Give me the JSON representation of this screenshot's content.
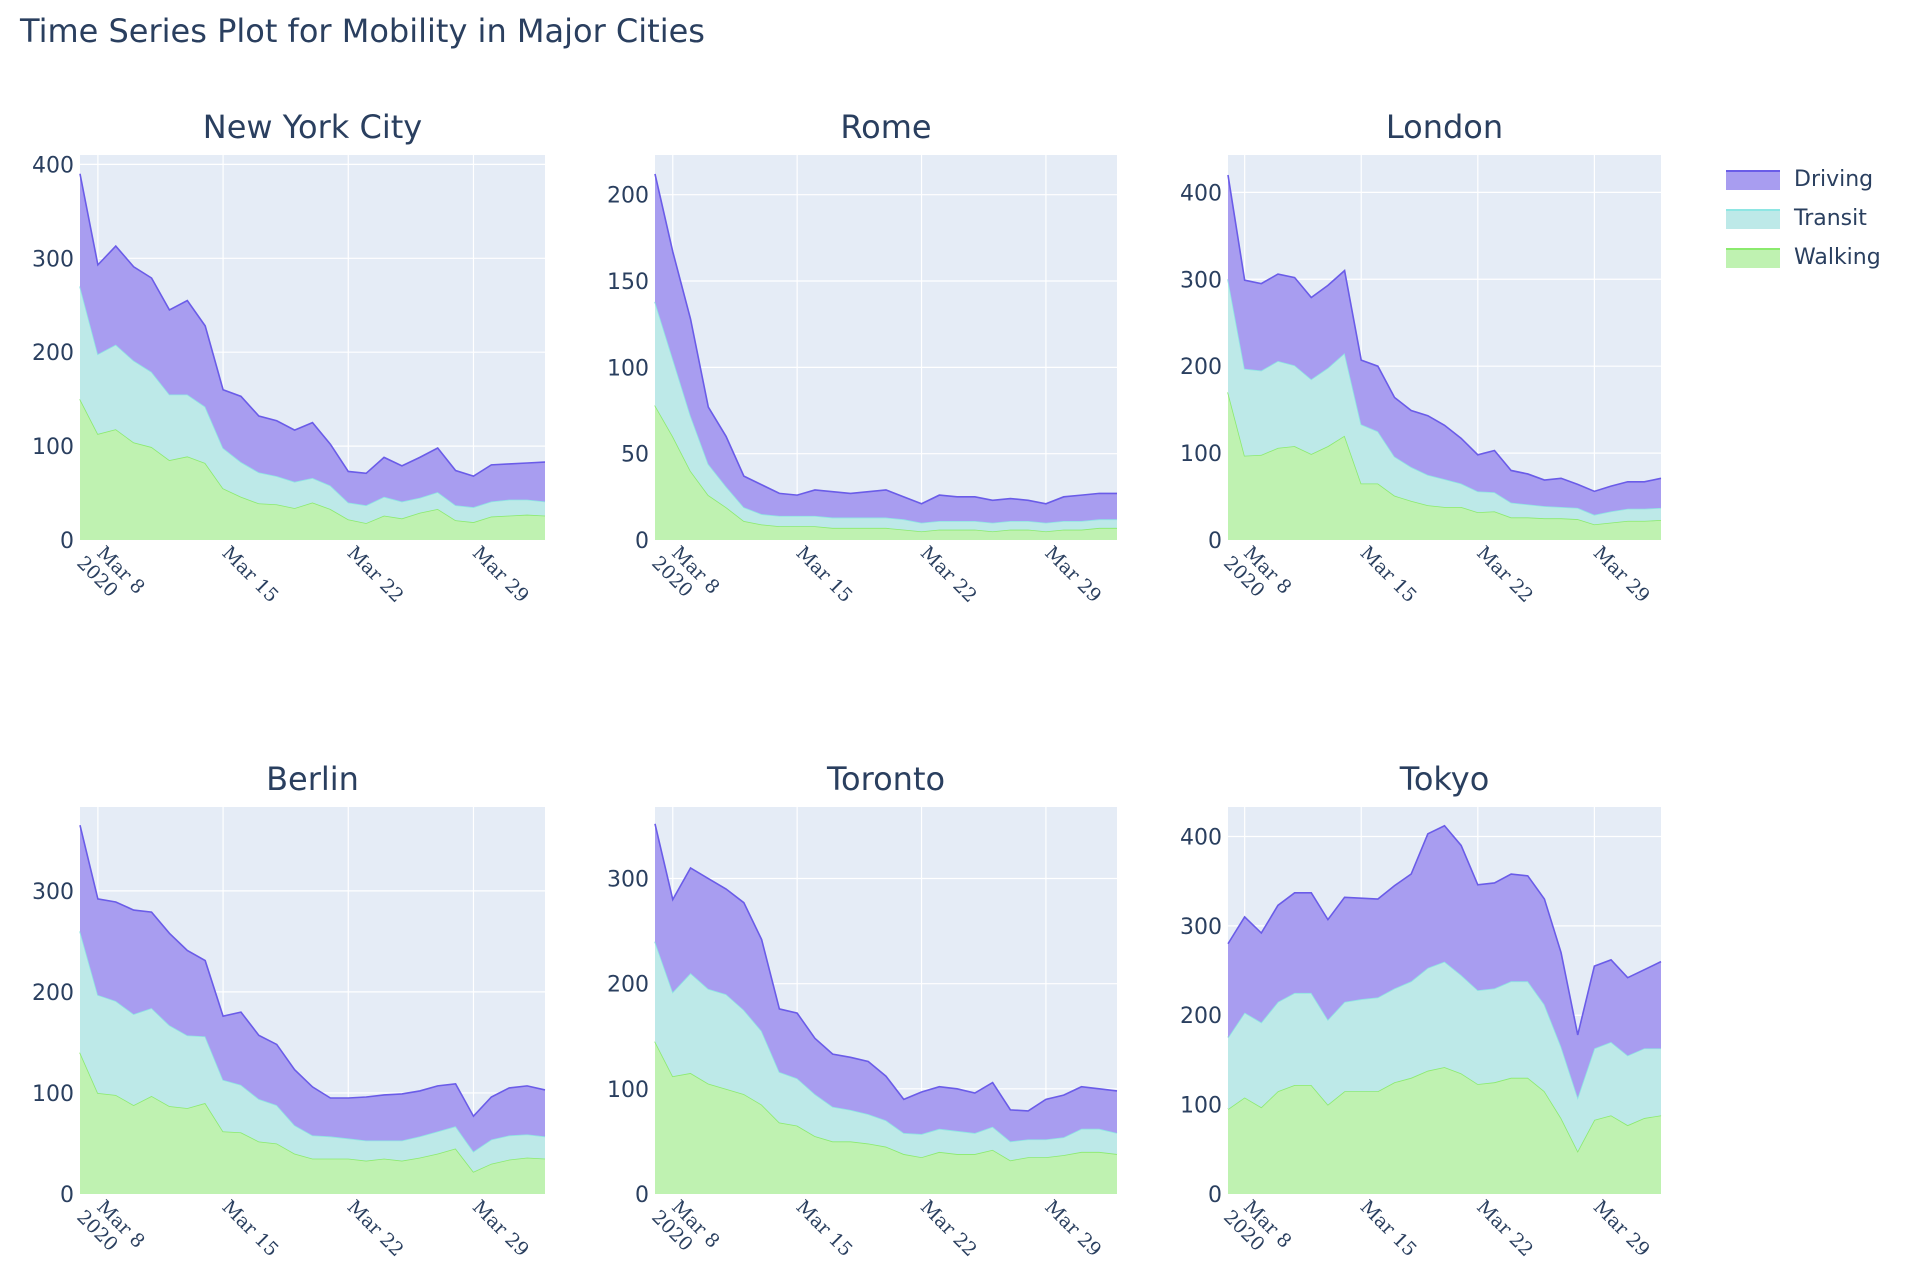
{
  "title": "Time Series Plot for Mobility in Major Cities",
  "colors": {
    "driving_fill": "#a89df0",
    "driving_line": "#6a5ce8",
    "transit_fill": "#bde9e8",
    "transit_line": "#8ee6e3",
    "walking_fill": "#bff2b1",
    "walking_line": "#8bea6e",
    "plot_bg": "#e5ecf6",
    "grid": "#ffffff",
    "text": "#2a3f5f"
  },
  "legend": [
    {
      "name": "Driving",
      "fill": "#a89df0",
      "line": "#6a5ce8"
    },
    {
      "name": "Transit",
      "fill": "#bde9e8",
      "line": "#8ee6e3"
    },
    {
      "name": "Walking",
      "fill": "#bff2b1",
      "line": "#8bea6e"
    }
  ],
  "x_ticks": [
    {
      "day": 8,
      "label": "Mar 8",
      "sub": "2020"
    },
    {
      "day": 15,
      "label": "Mar 15",
      "sub": ""
    },
    {
      "day": 22,
      "label": "Mar 22",
      "sub": ""
    },
    {
      "day": 29,
      "label": "Mar 29",
      "sub": ""
    }
  ],
  "chart_data": [
    {
      "type": "area",
      "stacked": true,
      "title": "New York City",
      "x": [
        "2020-03-07",
        "2020-03-08",
        "2020-03-09",
        "2020-03-10",
        "2020-03-11",
        "2020-03-12",
        "2020-03-13",
        "2020-03-14",
        "2020-03-15",
        "2020-03-16",
        "2020-03-17",
        "2020-03-18",
        "2020-03-19",
        "2020-03-20",
        "2020-03-21",
        "2020-03-22",
        "2020-03-23",
        "2020-03-24",
        "2020-03-25",
        "2020-03-26",
        "2020-03-27",
        "2020-03-28",
        "2020-03-29",
        "2020-03-30",
        "2020-03-31",
        "2020-04-01",
        "2020-04-02"
      ],
      "ylim": [
        0,
        410
      ],
      "yticks": [
        0,
        100,
        200,
        300,
        400
      ],
      "series": [
        {
          "name": "Walking",
          "values": [
            150,
            113,
            118,
            104,
            99,
            85,
            89,
            82,
            55,
            46,
            39,
            38,
            34,
            40,
            33,
            22,
            18,
            26,
            23,
            29,
            33,
            21,
            19,
            25,
            26,
            27,
            26
          ]
        },
        {
          "name": "Transit",
          "values": [
            120,
            85,
            90,
            87,
            80,
            70,
            66,
            60,
            43,
            37,
            33,
            30,
            28,
            26,
            25,
            18,
            19,
            20,
            18,
            16,
            18,
            16,
            16,
            16,
            17,
            16,
            15
          ]
        },
        {
          "name": "Driving",
          "values": [
            120,
            95,
            105,
            100,
            100,
            90,
            100,
            86,
            62,
            70,
            60,
            59,
            55,
            59,
            44,
            33,
            34,
            42,
            38,
            43,
            47,
            37,
            33,
            39,
            38,
            39,
            42
          ]
        }
      ]
    },
    {
      "type": "area",
      "stacked": true,
      "title": "Rome",
      "x": [
        "2020-03-07",
        "2020-03-08",
        "2020-03-09",
        "2020-03-10",
        "2020-03-11",
        "2020-03-12",
        "2020-03-13",
        "2020-03-14",
        "2020-03-15",
        "2020-03-16",
        "2020-03-17",
        "2020-03-18",
        "2020-03-19",
        "2020-03-20",
        "2020-03-21",
        "2020-03-22",
        "2020-03-23",
        "2020-03-24",
        "2020-03-25",
        "2020-03-26",
        "2020-03-27",
        "2020-03-28",
        "2020-03-29",
        "2020-03-30",
        "2020-03-31",
        "2020-04-01",
        "2020-04-02"
      ],
      "ylim": [
        0,
        223
      ],
      "yticks": [
        0,
        50,
        100,
        150,
        200
      ],
      "series": [
        {
          "name": "Walking",
          "values": [
            78,
            60,
            40,
            26,
            19,
            11,
            9,
            8,
            8,
            8,
            7,
            7,
            7,
            7,
            6,
            5,
            6,
            6,
            6,
            5,
            6,
            6,
            5,
            6,
            6,
            7,
            7
          ]
        },
        {
          "name": "Transit",
          "values": [
            60,
            45,
            32,
            18,
            12,
            8,
            6,
            6,
            6,
            6,
            6,
            6,
            6,
            6,
            6,
            5,
            5,
            5,
            5,
            5,
            5,
            5,
            5,
            5,
            5,
            5,
            5
          ]
        },
        {
          "name": "Driving",
          "values": [
            74,
            62,
            56,
            33,
            29,
            18,
            17,
            13,
            12,
            15,
            15,
            14,
            15,
            16,
            13,
            11,
            15,
            14,
            14,
            13,
            13,
            12,
            11,
            14,
            15,
            15,
            15
          ]
        }
      ]
    },
    {
      "type": "area",
      "stacked": true,
      "title": "London",
      "x": [
        "2020-03-07",
        "2020-03-08",
        "2020-03-09",
        "2020-03-10",
        "2020-03-11",
        "2020-03-12",
        "2020-03-13",
        "2020-03-14",
        "2020-03-15",
        "2020-03-16",
        "2020-03-17",
        "2020-03-18",
        "2020-03-19",
        "2020-03-20",
        "2020-03-21",
        "2020-03-22",
        "2020-03-23",
        "2020-03-24",
        "2020-03-25",
        "2020-03-26",
        "2020-03-27",
        "2020-03-28",
        "2020-03-29",
        "2020-03-30",
        "2020-03-31",
        "2020-04-01",
        "2020-04-02"
      ],
      "ylim": [
        0,
        443
      ],
      "yticks": [
        0,
        100,
        200,
        300,
        400
      ],
      "series": [
        {
          "name": "Walking",
          "values": [
            170,
            97,
            98,
            106,
            108,
            99,
            108,
            120,
            65,
            65,
            51,
            45,
            40,
            38,
            38,
            32,
            33,
            26,
            26,
            25,
            25,
            24,
            18,
            20,
            22,
            22,
            23
          ]
        },
        {
          "name": "Transit",
          "values": [
            130,
            100,
            97,
            100,
            93,
            86,
            90,
            95,
            68,
            60,
            45,
            39,
            35,
            32,
            27,
            24,
            22,
            17,
            15,
            14,
            13,
            13,
            11,
            13,
            14,
            14,
            14
          ]
        },
        {
          "name": "Driving",
          "values": [
            120,
            102,
            100,
            100,
            101,
            94,
            95,
            95,
            74,
            75,
            68,
            65,
            68,
            62,
            52,
            42,
            48,
            37,
            35,
            30,
            33,
            27,
            27,
            29,
            31,
            31,
            34
          ]
        }
      ]
    },
    {
      "type": "area",
      "stacked": true,
      "title": "Berlin",
      "x": [
        "2020-03-07",
        "2020-03-08",
        "2020-03-09",
        "2020-03-10",
        "2020-03-11",
        "2020-03-12",
        "2020-03-13",
        "2020-03-14",
        "2020-03-15",
        "2020-03-16",
        "2020-03-17",
        "2020-03-18",
        "2020-03-19",
        "2020-03-20",
        "2020-03-21",
        "2020-03-22",
        "2020-03-23",
        "2020-03-24",
        "2020-03-25",
        "2020-03-26",
        "2020-03-27",
        "2020-03-28",
        "2020-03-29",
        "2020-03-30",
        "2020-03-31",
        "2020-04-01",
        "2020-04-02"
      ],
      "ylim": [
        0,
        383
      ],
      "yticks": [
        0,
        100,
        200,
        300
      ],
      "series": [
        {
          "name": "Walking",
          "values": [
            140,
            100,
            98,
            88,
            97,
            87,
            85,
            90,
            62,
            61,
            52,
            50,
            40,
            35,
            35,
            35,
            33,
            35,
            33,
            36,
            40,
            45,
            22,
            30,
            34,
            36,
            35
          ]
        },
        {
          "name": "Transit",
          "values": [
            120,
            97,
            93,
            90,
            87,
            80,
            72,
            66,
            51,
            47,
            42,
            38,
            28,
            23,
            22,
            20,
            20,
            18,
            20,
            21,
            22,
            22,
            20,
            24,
            24,
            23,
            22
          ]
        },
        {
          "name": "Driving",
          "values": [
            105,
            95,
            98,
            103,
            95,
            91,
            84,
            75,
            63,
            72,
            63,
            60,
            55,
            48,
            38,
            40,
            43,
            45,
            46,
            45,
            45,
            42,
            35,
            42,
            47,
            48,
            46
          ]
        }
      ]
    },
    {
      "type": "area",
      "stacked": true,
      "title": "Toronto",
      "x": [
        "2020-03-07",
        "2020-03-08",
        "2020-03-09",
        "2020-03-10",
        "2020-03-11",
        "2020-03-12",
        "2020-03-13",
        "2020-03-14",
        "2020-03-15",
        "2020-03-16",
        "2020-03-17",
        "2020-03-18",
        "2020-03-19",
        "2020-03-20",
        "2020-03-21",
        "2020-03-22",
        "2020-03-23",
        "2020-03-24",
        "2020-03-25",
        "2020-03-26",
        "2020-03-27",
        "2020-03-28",
        "2020-03-29",
        "2020-03-30",
        "2020-03-31",
        "2020-04-01",
        "2020-04-02"
      ],
      "ylim": [
        0,
        368
      ],
      "yticks": [
        0,
        100,
        200,
        300
      ],
      "series": [
        {
          "name": "Walking",
          "values": [
            145,
            112,
            115,
            105,
            100,
            95,
            85,
            68,
            65,
            55,
            50,
            50,
            48,
            45,
            38,
            35,
            40,
            38,
            38,
            42,
            32,
            35,
            35,
            37,
            40,
            40,
            38
          ]
        },
        {
          "name": "Transit",
          "values": [
            95,
            80,
            95,
            90,
            90,
            80,
            70,
            48,
            45,
            40,
            33,
            30,
            28,
            25,
            20,
            22,
            22,
            22,
            20,
            22,
            18,
            17,
            17,
            17,
            22,
            22,
            20
          ]
        },
        {
          "name": "Driving",
          "values": [
            112,
            88,
            100,
            105,
            100,
            102,
            87,
            60,
            62,
            53,
            50,
            50,
            50,
            42,
            32,
            40,
            40,
            40,
            38,
            42,
            30,
            27,
            38,
            40,
            40,
            38,
            40
          ]
        }
      ]
    },
    {
      "type": "area",
      "stacked": true,
      "title": "Tokyo",
      "x": [
        "2020-03-07",
        "2020-03-08",
        "2020-03-09",
        "2020-03-10",
        "2020-03-11",
        "2020-03-12",
        "2020-03-13",
        "2020-03-14",
        "2020-03-15",
        "2020-03-16",
        "2020-03-17",
        "2020-03-18",
        "2020-03-19",
        "2020-03-20",
        "2020-03-21",
        "2020-03-22",
        "2020-03-23",
        "2020-03-24",
        "2020-03-25",
        "2020-03-26",
        "2020-03-27",
        "2020-03-28",
        "2020-03-29",
        "2020-03-30",
        "2020-03-31",
        "2020-04-01",
        "2020-04-02"
      ],
      "ylim": [
        0,
        433
      ],
      "yticks": [
        0,
        100,
        200,
        300,
        400
      ],
      "series": [
        {
          "name": "Walking",
          "values": [
            95,
            108,
            97,
            115,
            122,
            122,
            100,
            115,
            115,
            115,
            125,
            130,
            138,
            142,
            135,
            123,
            125,
            130,
            130,
            115,
            85,
            48,
            83,
            88,
            77,
            85,
            88
          ]
        },
        {
          "name": "Transit",
          "values": [
            80,
            95,
            95,
            100,
            103,
            103,
            95,
            100,
            103,
            105,
            105,
            108,
            115,
            118,
            110,
            105,
            105,
            108,
            108,
            97,
            80,
            60,
            80,
            82,
            78,
            78,
            75
          ]
        },
        {
          "name": "Driving",
          "values": [
            105,
            107,
            100,
            108,
            112,
            112,
            112,
            117,
            113,
            110,
            115,
            120,
            150,
            152,
            145,
            118,
            118,
            120,
            118,
            118,
            105,
            70,
            92,
            92,
            87,
            88,
            97
          ]
        }
      ]
    }
  ]
}
